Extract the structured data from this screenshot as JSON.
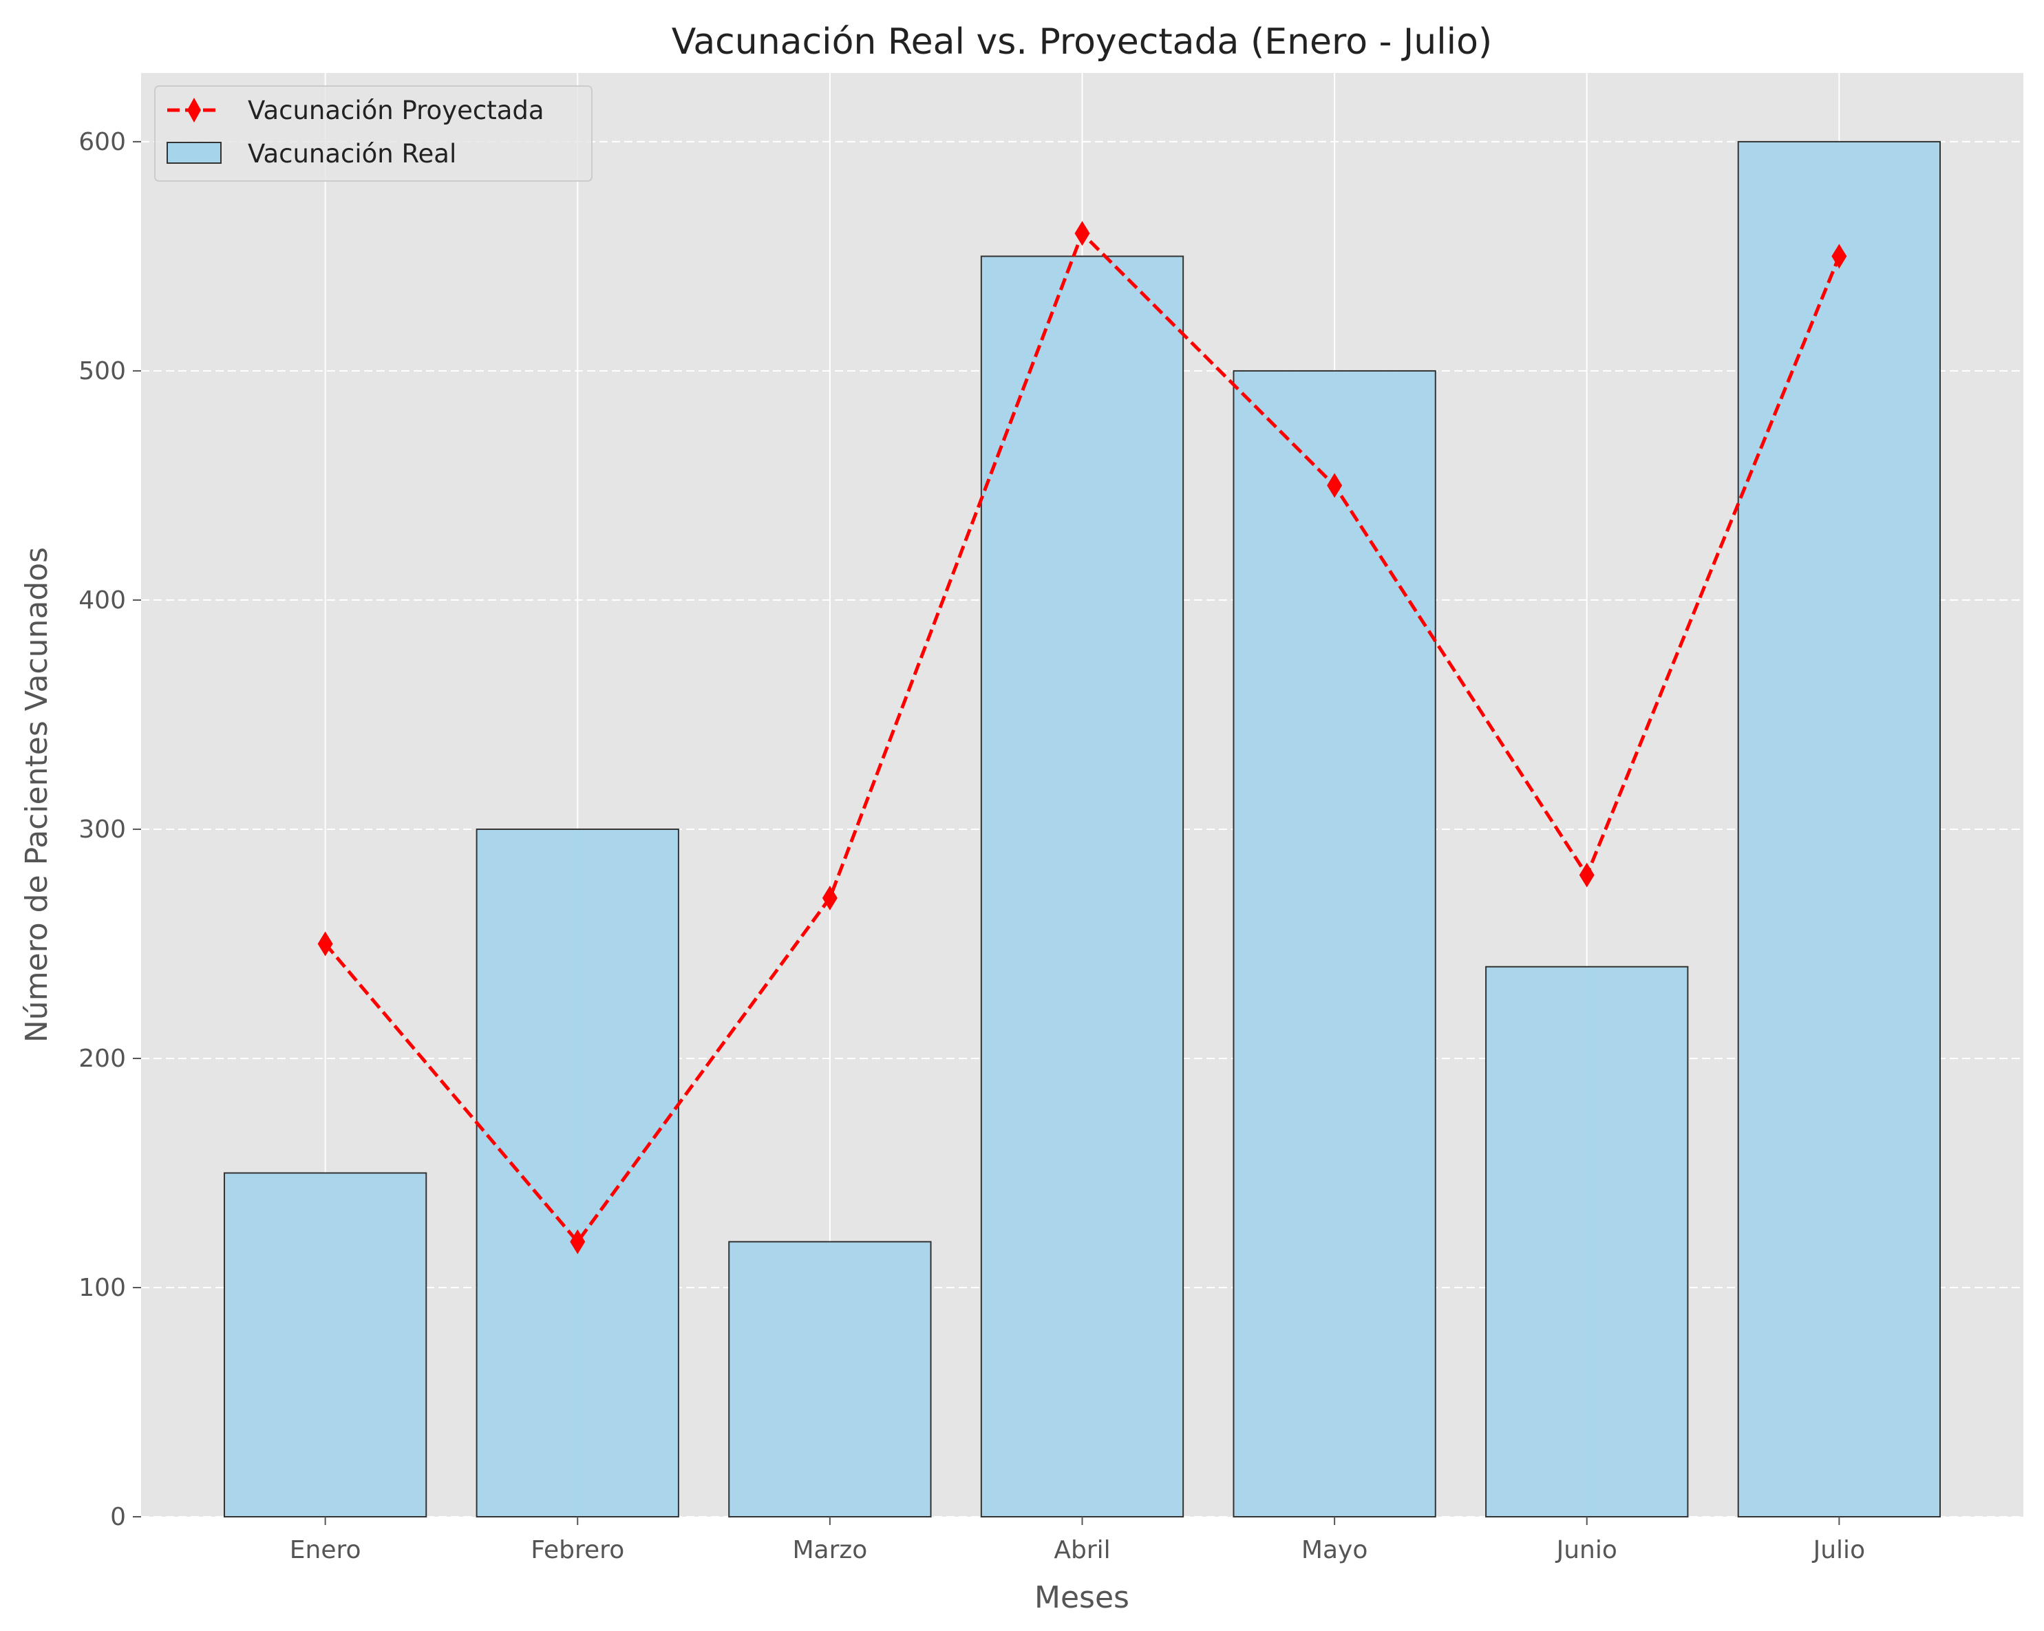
{
  "chart_data": {
    "type": "bar",
    "title": "Vacunación Real vs. Proyectada (Enero - Julio)",
    "xlabel": "Meses",
    "ylabel": "Número de Pacientes Vacunados",
    "categories": [
      "Enero",
      "Febrero",
      "Marzo",
      "Abril",
      "Mayo",
      "Junio",
      "Julio"
    ],
    "ylim": [
      0,
      630
    ],
    "yticks": [
      0,
      100,
      200,
      300,
      400,
      500,
      600
    ],
    "grid": true,
    "legend_position": "top-left",
    "series": [
      {
        "name": "Vacunación Real",
        "type": "bar",
        "color": "#a6d4ea",
        "edge_color": "#333333",
        "values": [
          150,
          300,
          120,
          550,
          500,
          240,
          600
        ]
      },
      {
        "name": "Vacunación Proyectada",
        "type": "line",
        "line_style": "dashed",
        "marker": "diamond",
        "color": "#ff0000",
        "values": [
          250,
          120,
          270,
          560,
          450,
          280,
          550
        ]
      }
    ],
    "colors": {
      "plot_background": "#e5e5e5",
      "grid": "#ffffff"
    }
  }
}
